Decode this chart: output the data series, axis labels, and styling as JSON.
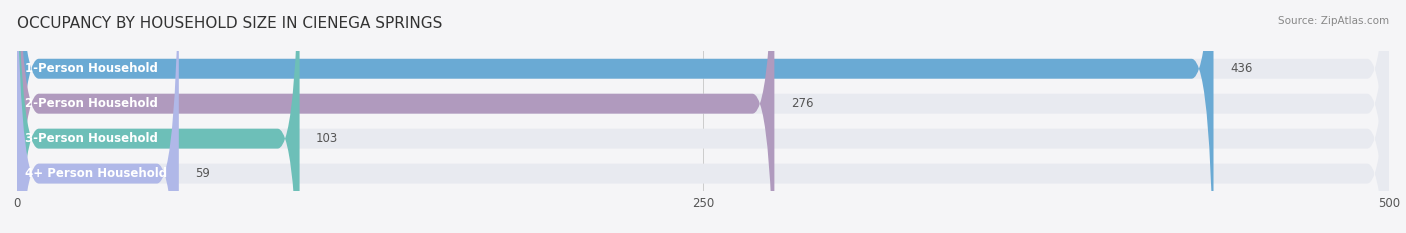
{
  "title": "OCCUPANCY BY HOUSEHOLD SIZE IN CIENEGA SPRINGS",
  "source": "Source: ZipAtlas.com",
  "categories": [
    "1-Person Household",
    "2-Person Household",
    "3-Person Household",
    "4+ Person Household"
  ],
  "values": [
    436,
    276,
    103,
    59
  ],
  "bar_colors": [
    "#6aaad4",
    "#b09abe",
    "#6dbfb8",
    "#b0b8e8"
  ],
  "bar_background": "#e8eaf0",
  "xlim": [
    0,
    500
  ],
  "xticks": [
    0,
    250,
    500
  ],
  "figsize": [
    14.06,
    2.33
  ],
  "dpi": 100,
  "title_fontsize": 11,
  "label_fontsize": 8.5,
  "value_fontsize": 8.5,
  "bar_height": 0.55,
  "background_color": "#f5f5f7"
}
